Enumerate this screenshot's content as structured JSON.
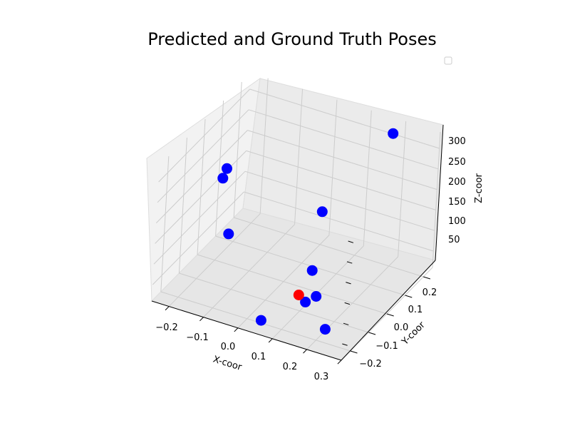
{
  "chart_data": {
    "type": "scatter3d",
    "title": "Predicted and Ground Truth Poses",
    "xlabel": "X-coor",
    "ylabel": "Y-coor",
    "zlabel": "Z-coor",
    "x_ticks": [
      "−0.2",
      "−0.1",
      "0.0",
      "0.1",
      "0.2",
      "0.3"
    ],
    "y_ticks": [
      "−0.2",
      "−0.1",
      "0.0",
      "0.1",
      "0.2"
    ],
    "z_ticks": [
      "50",
      "100",
      "150",
      "200",
      "250",
      "300"
    ],
    "grid": true,
    "legend": "top-right (empty)",
    "colors": {
      "blue_points": "#0000ff",
      "red_points": "#ff0000",
      "pane": "#f2f2f2",
      "grid": "#cccccc"
    },
    "series": [
      {
        "color": "#0000ff",
        "points": [
          [
            0.19,
            0.2,
            330
          ],
          [
            -0.18,
            0.0,
            238
          ],
          [
            -0.19,
            0.0,
            212
          ],
          [
            0.05,
            0.1,
            148
          ],
          [
            -0.14,
            -0.05,
            112
          ],
          [
            0.08,
            0.0,
            58
          ],
          [
            0.12,
            -0.05,
            28
          ],
          [
            0.1,
            -0.07,
            18
          ],
          [
            0.05,
            -0.22,
            28
          ],
          [
            0.2,
            -0.15,
            14
          ]
        ]
      },
      {
        "color": "#ff0000",
        "points": [
          [
            0.08,
            -0.07,
            30
          ]
        ]
      }
    ]
  }
}
